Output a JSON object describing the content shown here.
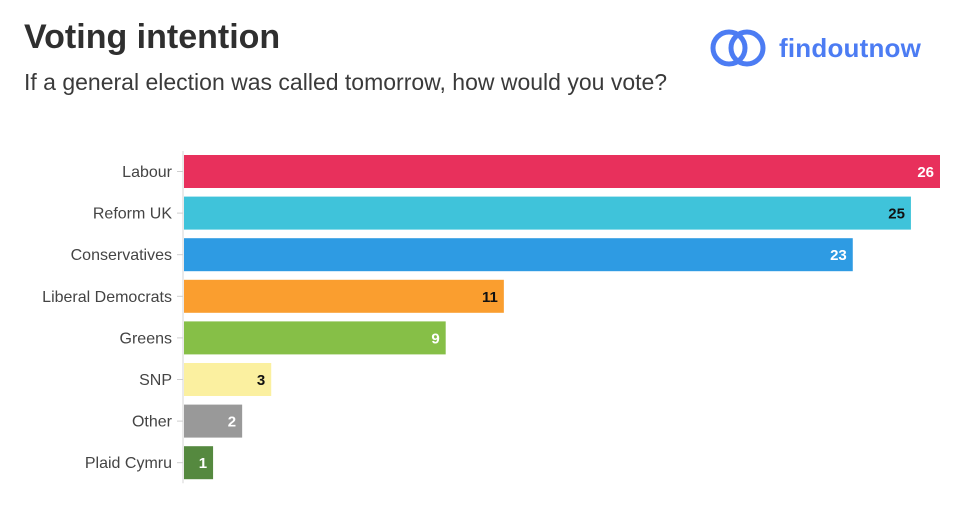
{
  "header": {
    "title": "Voting intention",
    "subtitle": "If a general election was called tomorrow, how would you vote?"
  },
  "brand": {
    "name": "findoutnow",
    "icon": "two-overlapping-rings-logo",
    "color": "#4c7cf3"
  },
  "chart_data": {
    "type": "bar",
    "orientation": "horizontal",
    "title": "Voting intention",
    "subtitle": "If a general election was called tomorrow, how would you vote?",
    "categories": [
      "Labour",
      "Reform UK",
      "Conservatives",
      "Liberal Democrats",
      "Greens",
      "SNP",
      "Other",
      "Plaid Cymru"
    ],
    "values": [
      26,
      25,
      23,
      11,
      9,
      3,
      2,
      1
    ],
    "colors": [
      "#e8305c",
      "#3fc3da",
      "#2e9be3",
      "#fa9e2f",
      "#86bf47",
      "#fbf0a0",
      "#999999",
      "#55893f"
    ],
    "label_colors": [
      "#ffffff",
      "#111111",
      "#ffffff",
      "#111111",
      "#ffffff",
      "#111111",
      "#ffffff",
      "#ffffff"
    ],
    "xlim": [
      0,
      26
    ],
    "grid": false,
    "legend": "none",
    "xlabel": "",
    "ylabel": ""
  }
}
